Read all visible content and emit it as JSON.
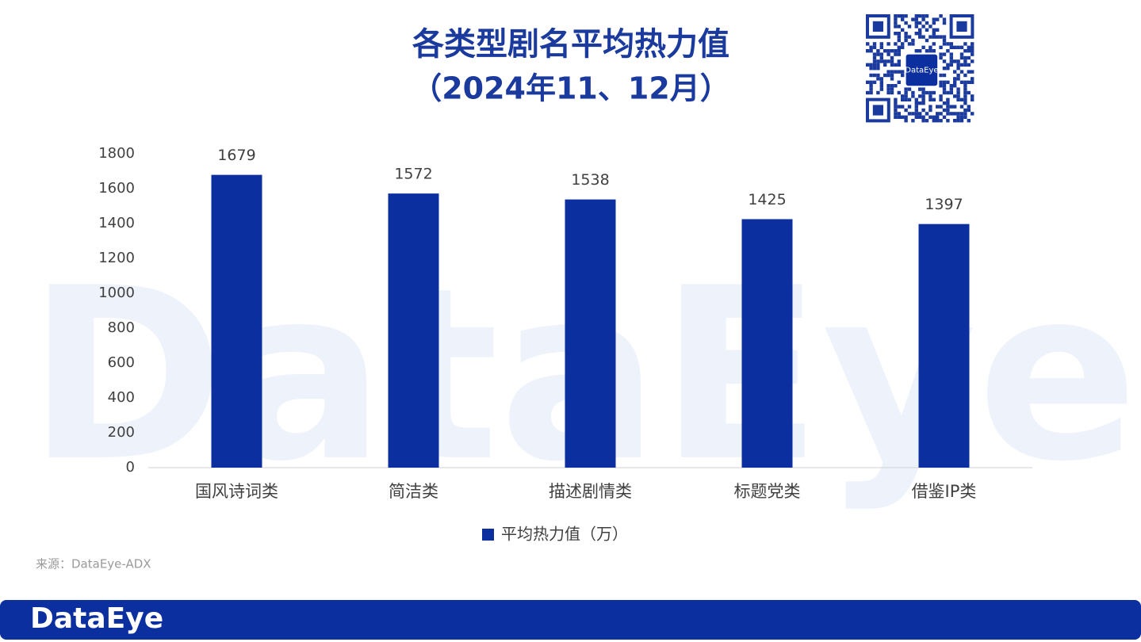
{
  "chart_data": {
    "type": "bar",
    "title": "各类型剧名平均热力值",
    "subtitle": "（2024年11、12月）",
    "categories": [
      "国风诗词类",
      "简洁类",
      "描述剧情类",
      "标题党类",
      "借鉴IP类"
    ],
    "series": [
      {
        "name": "平均热力值（万）",
        "color": "#0b2f9f",
        "values": [
          1679,
          1572,
          1538,
          1425,
          1397
        ]
      }
    ],
    "ylim": [
      0,
      1800
    ],
    "yticks": [
      0,
      200,
      400,
      600,
      800,
      1000,
      1200,
      1400,
      1600,
      1800
    ],
    "grid": false,
    "legend": "bottom"
  },
  "source": "来源：DataEye-ADX",
  "watermark": "DataEye",
  "footer_logo": "DataEye",
  "qr_label": "DataEye"
}
